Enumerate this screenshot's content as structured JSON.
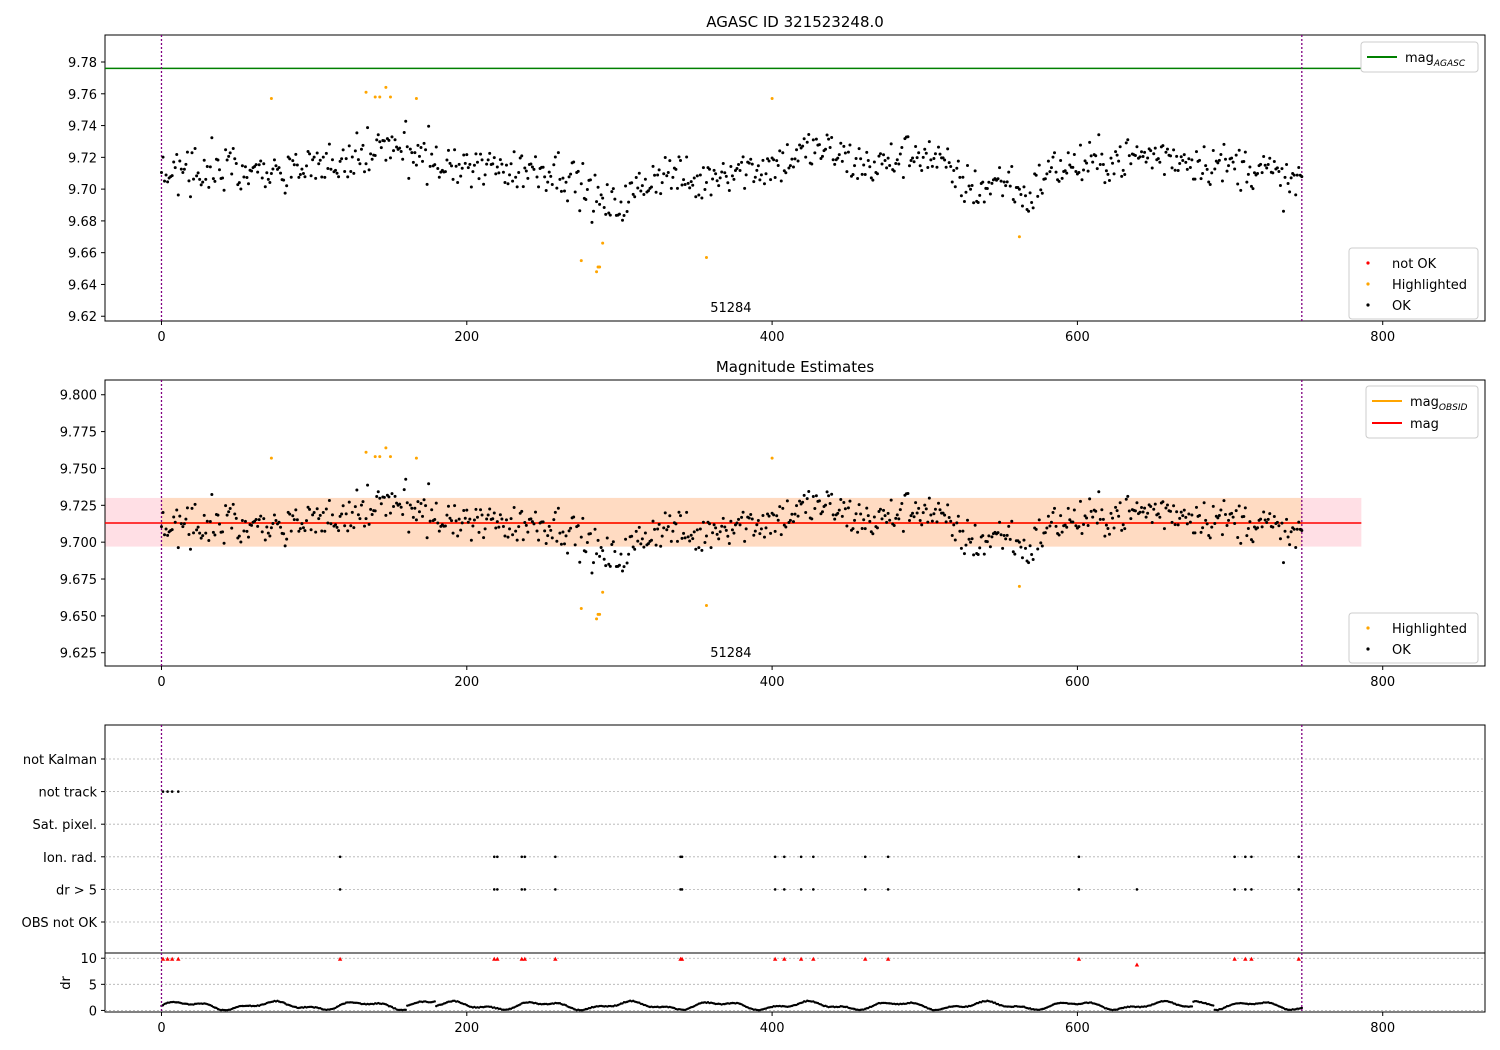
{
  "chart_data": [
    {
      "type": "scatter",
      "title": "AGASC ID 321523248.0",
      "xlim": [
        -37,
        867
      ],
      "ylim": [
        9.617,
        9.797
      ],
      "xticks": [
        0,
        200,
        400,
        600,
        800
      ],
      "yticks": [
        9.62,
        9.64,
        9.66,
        9.68,
        9.7,
        9.72,
        9.74,
        9.76,
        9.78
      ],
      "y_decimals": 2,
      "obs_boundaries": [
        0,
        747
      ],
      "obs_label": "51284",
      "obs_label_x": 373,
      "hlines": [
        {
          "name": "mag_AGASC",
          "value": 9.776,
          "x_range": [
            -37,
            786
          ],
          "color": "#008000"
        }
      ],
      "legend_lines": [
        {
          "label": "mag",
          "sub": "AGASC",
          "color": "#008000"
        }
      ],
      "legend_markers": [
        {
          "label": "not OK",
          "color": "#ff0000"
        },
        {
          "label": "Highlighted",
          "color": "#ffa500"
        },
        {
          "label": "OK",
          "color": "#000000"
        }
      ],
      "highlighted_points": [
        [
          72,
          9.757
        ],
        [
          134,
          9.761
        ],
        [
          140,
          9.758
        ],
        [
          143,
          9.758
        ],
        [
          147,
          9.764
        ],
        [
          150,
          9.758
        ],
        [
          167,
          9.757
        ],
        [
          275,
          9.655
        ],
        [
          285,
          9.648
        ],
        [
          286,
          9.651
        ],
        [
          287,
          9.651
        ],
        [
          289,
          9.666
        ],
        [
          357,
          9.657
        ],
        [
          400,
          9.757
        ],
        [
          562,
          9.67
        ]
      ],
      "colors": {
        "ok": "#000000",
        "highlighted": "#ffa500",
        "not_ok": "#ff0000",
        "boundary": "#800080"
      }
    },
    {
      "type": "scatter",
      "title": "Magnitude Estimates",
      "xlim": [
        -37,
        867
      ],
      "ylim": [
        9.616,
        9.81
      ],
      "xticks": [
        0,
        200,
        400,
        600,
        800
      ],
      "yticks": [
        9.625,
        9.65,
        9.675,
        9.7,
        9.725,
        9.75,
        9.775,
        9.8
      ],
      "y_decimals": 3,
      "obs_boundaries": [
        0,
        747
      ],
      "obs_label": "51284",
      "obs_label_x": 373,
      "mag": 9.713,
      "mag_band": [
        9.697,
        9.73
      ],
      "mag_obsid": 9.713,
      "obsid_band": [
        9.697,
        9.73
      ],
      "legend_lines": [
        {
          "label": "mag",
          "sub": "OBSID",
          "color": "#ffa500"
        },
        {
          "label": "mag",
          "sub": "",
          "color": "#ff0000"
        }
      ],
      "legend_markers": [
        {
          "label": "Highlighted",
          "color": "#ffa500"
        },
        {
          "label": "OK",
          "color": "#000000"
        }
      ],
      "colors": {
        "mag": "#ff0000",
        "mag_obsid": "#ffa500",
        "band_mag": "#ffc0cb",
        "band_obsid": "#ffdab9"
      }
    },
    {
      "type": "scatter",
      "xlim": [
        -37,
        867
      ],
      "xticks": [
        0,
        200,
        400,
        600,
        800
      ],
      "obs_boundaries": [
        0,
        747
      ],
      "flag_rows": [
        "not Kalman",
        "not track",
        "Sat. pixel.",
        "Ion. rad.",
        "dr > 5",
        "OBS not OK"
      ],
      "flags": {
        "not track": [
          1,
          4,
          7,
          11
        ],
        "Ion. rad.": [
          117,
          218,
          220,
          236,
          238,
          258,
          340,
          341,
          402,
          408,
          419,
          427,
          461,
          476,
          601,
          703,
          710,
          714,
          745
        ],
        "dr > 5": [
          117,
          218,
          220,
          236,
          238,
          258,
          340,
          341,
          402,
          408,
          419,
          427,
          461,
          476,
          601,
          639,
          703,
          710,
          714,
          745
        ]
      },
      "dr_label": "dr",
      "dr_ylim": [
        -0.3,
        11
      ],
      "dr_yticks": [
        0,
        5,
        10
      ],
      "dr_high": [
        [
          1,
          9.8
        ],
        [
          4,
          9.8
        ],
        [
          7,
          9.8
        ],
        [
          11,
          9.8
        ],
        [
          117,
          9.8
        ],
        [
          218,
          9.8
        ],
        [
          220,
          9.8
        ],
        [
          236,
          9.8
        ],
        [
          238,
          9.8
        ],
        [
          258,
          9.8
        ],
        [
          340,
          9.8
        ],
        [
          341,
          9.8
        ],
        [
          402,
          9.8
        ],
        [
          408,
          9.8
        ],
        [
          419,
          9.8
        ],
        [
          427,
          9.8
        ],
        [
          461,
          9.8
        ],
        [
          476,
          9.8
        ],
        [
          601,
          9.8
        ],
        [
          639,
          8.7
        ],
        [
          703,
          9.8
        ],
        [
          710,
          9.8
        ],
        [
          714,
          9.8
        ],
        [
          745,
          9.8
        ]
      ]
    }
  ]
}
